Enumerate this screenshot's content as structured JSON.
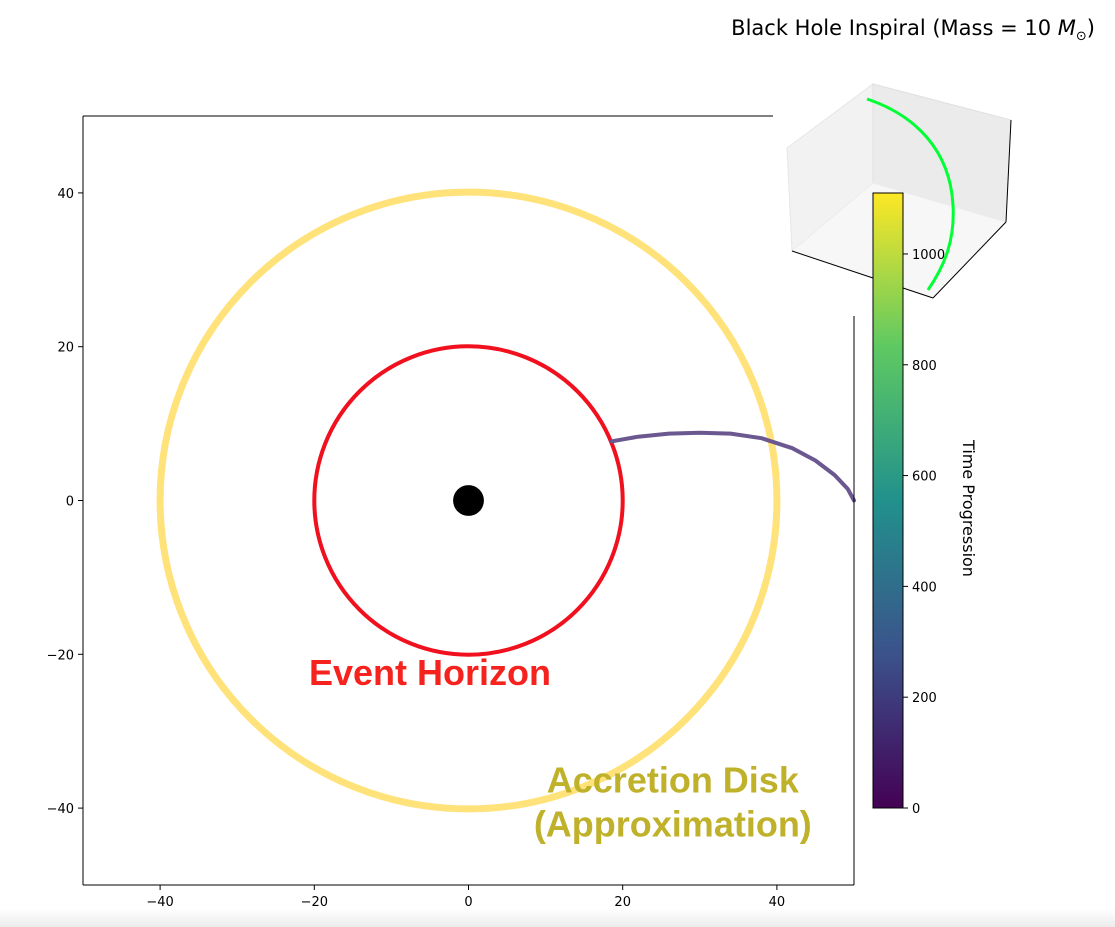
{
  "title": {
    "prefix": "Black Hole Inspiral (Mass = 10 ",
    "symbol": "M",
    "subscript": "⊙",
    "suffix": ")"
  },
  "colors": {
    "event_horizon": "#f0101e",
    "accretion_disk": "#ffe27a",
    "accretion_text": "#bfb12a",
    "event_text": "#f5221e",
    "black_hole": "#000000",
    "trajectory": "#6c5891",
    "inset_trajectory": "#00ff33",
    "colormap": [
      "#440154",
      "#3b528b",
      "#21918c",
      "#5ec962",
      "#fde725"
    ]
  },
  "chart_data": [
    {
      "type": "line",
      "xlim": [
        -50,
        50
      ],
      "ylim": [
        -50,
        50
      ],
      "xticks": [
        -40,
        -20,
        0,
        20,
        40
      ],
      "yticks": [
        -40,
        -20,
        0,
        20,
        40
      ],
      "xtick_labels": [
        "−40",
        "−20",
        "0",
        "20",
        "40"
      ],
      "ytick_labels": [
        "−40",
        "−20",
        "0",
        "20",
        "40"
      ],
      "grid": false,
      "circles": [
        {
          "name": "accretion-disk",
          "center": [
            0,
            0
          ],
          "radius": 40
        },
        {
          "name": "event-horizon",
          "center": [
            0,
            0
          ],
          "radius": 20
        }
      ],
      "black_hole": {
        "center": [
          0,
          0
        ],
        "radius": 2
      },
      "trajectory": {
        "x": [
          18.6,
          22,
          26,
          30,
          34,
          38,
          42,
          45,
          47.5,
          49.2,
          50
        ],
        "y": [
          7.7,
          8.3,
          8.7,
          8.8,
          8.7,
          8.1,
          6.8,
          5.2,
          3.3,
          1.5,
          0
        ]
      },
      "annotations": [
        {
          "text": "Event Horizon",
          "x": -5,
          "y": -24
        },
        {
          "text": "Accretion Disk",
          "x": 26.5,
          "y": -38
        },
        {
          "text": "(Approximation)",
          "x": 26.5,
          "y": -43.7
        }
      ]
    },
    {
      "type": "colorbar",
      "label": "Time Progression",
      "range": [
        0,
        1110
      ],
      "ticks": [
        0,
        200,
        400,
        600,
        800,
        1000
      ],
      "tick_labels": [
        "0",
        "200",
        "400",
        "600",
        "800",
        "1000"
      ]
    },
    {
      "type": "line3d",
      "series": [
        {
          "values": "spiral-arc"
        }
      ]
    }
  ]
}
